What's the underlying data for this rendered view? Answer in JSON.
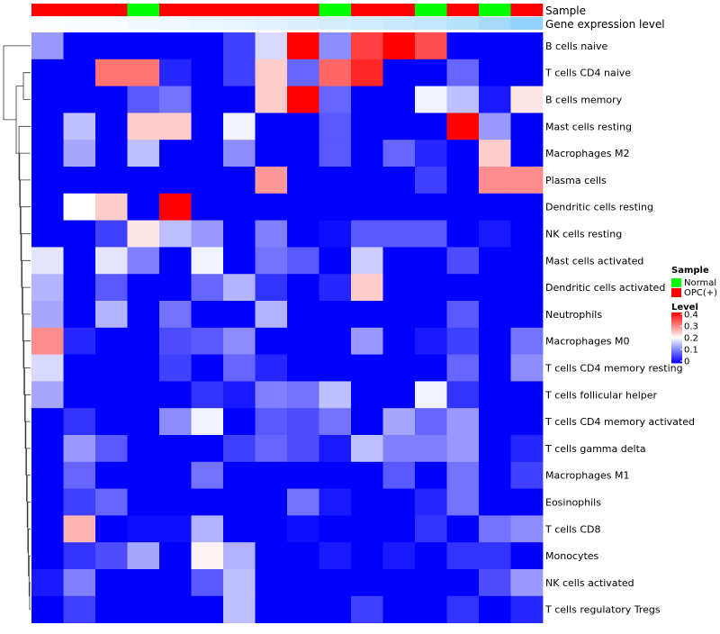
{
  "chart_data": {
    "type": "heatmap",
    "annotations": [
      {
        "label": "Sample",
        "values": [
          "OPC(+)",
          "OPC(+)",
          "OPC(+)",
          "Normal",
          "OPC(+)",
          "OPC(+)",
          "OPC(+)",
          "OPC(+)",
          "OPC(+)",
          "Normal",
          "OPC(+)",
          "OPC(+)",
          "Normal",
          "OPC(+)",
          "Normal",
          "OPC(+)"
        ]
      },
      {
        "label": "Gene expression level",
        "values": [
          0.02,
          0.04,
          0.06,
          0.1,
          0.14,
          0.18,
          0.22,
          0.26,
          0.3,
          0.35,
          0.4,
          0.45,
          0.5,
          0.6,
          0.75,
          0.9
        ]
      }
    ],
    "rows": [
      "B cells naive",
      "T cells CD4 naive",
      "B cells memory",
      "Mast cells resting",
      "Macrophages M2",
      "Plasma cells",
      "Dendritic cells resting",
      "NK cells resting",
      "Mast cells activated",
      "Dendritic cells activated",
      "Neutrophils",
      "Macrophages M0",
      "T cells CD4 memory resting",
      "T cells follicular helper",
      "T cells CD4 memory activated",
      "T cells gamma delta",
      "Macrophages M1",
      "Eosinophils",
      "T cells CD8",
      "Monocytes",
      "NK cells activated",
      "T cells regulatory  Tregs"
    ],
    "values": [
      [
        0.12,
        0,
        0,
        0,
        0,
        0,
        0.05,
        0.17,
        0.4,
        0.11,
        0.35,
        0.4,
        0.34,
        0,
        0,
        0
      ],
      [
        0,
        0,
        0.31,
        0.31,
        0.03,
        0,
        0.05,
        0.24,
        0.08,
        0.32,
        0.37,
        0,
        0,
        0.08,
        0,
        0
      ],
      [
        0,
        0,
        0,
        0.07,
        0.09,
        0,
        0,
        0.24,
        0.4,
        0.08,
        0,
        0,
        0.19,
        0.15,
        0.02,
        0.22
      ],
      [
        0,
        0.15,
        0,
        0.24,
        0.24,
        0,
        0.19,
        0,
        0,
        0.07,
        0,
        0,
        0,
        0.4,
        0.12,
        0
      ],
      [
        0,
        0.13,
        0,
        0.15,
        0,
        0,
        0.11,
        0,
        0,
        0.07,
        0,
        0.08,
        0.03,
        0,
        0.24,
        0
      ],
      [
        0,
        0,
        0,
        0,
        0,
        0,
        0,
        0.28,
        0,
        0,
        0,
        0,
        0.05,
        0,
        0.29,
        0.29
      ],
      [
        0,
        0.2,
        0.24,
        0,
        0.4,
        0,
        0,
        0,
        0,
        0,
        0,
        0,
        0,
        0,
        0,
        0
      ],
      [
        0,
        0,
        0.05,
        0.22,
        0.15,
        0.12,
        0,
        0.1,
        0,
        0.01,
        0.07,
        0.07,
        0.07,
        0,
        0.02,
        0
      ],
      [
        0.18,
        0,
        0.18,
        0.1,
        0,
        0.19,
        0,
        0.09,
        0.07,
        0,
        0.16,
        0,
        0,
        0.06,
        0,
        0
      ],
      [
        0.14,
        0,
        0.07,
        0,
        0,
        0.08,
        0.14,
        0.04,
        0,
        0.03,
        0.24,
        0,
        0,
        0,
        0,
        0
      ],
      [
        0.13,
        0,
        0.14,
        0,
        0.09,
        0,
        0,
        0.14,
        0,
        0,
        0,
        0,
        0,
        0.07,
        0,
        0
      ],
      [
        0.29,
        0.03,
        0,
        0,
        0.06,
        0.07,
        0.11,
        0,
        0,
        0,
        0.12,
        0,
        0.02,
        0.05,
        0,
        0.09
      ],
      [
        0.17,
        0,
        0,
        0,
        0.05,
        0,
        0.08,
        0.03,
        0,
        0,
        0,
        0,
        0,
        0.08,
        0,
        0.11
      ],
      [
        0.13,
        0,
        0,
        0,
        0,
        0.04,
        0.02,
        0.1,
        0.09,
        0.15,
        0,
        0,
        0.19,
        0.04,
        0,
        0
      ],
      [
        0,
        0.04,
        0,
        0,
        0.11,
        0.19,
        0,
        0.07,
        0.06,
        0.09,
        0,
        0.13,
        0.08,
        0.12,
        0,
        0
      ],
      [
        0,
        0.12,
        0.07,
        0,
        0,
        0,
        0.05,
        0.08,
        0.06,
        0.02,
        0.15,
        0.1,
        0.1,
        0.12,
        0,
        0.03
      ],
      [
        0,
        0.08,
        0,
        0,
        0,
        0.09,
        0,
        0,
        0,
        0,
        0,
        0.07,
        0,
        0.09,
        0,
        0.05
      ],
      [
        0,
        0.05,
        0.08,
        0,
        0,
        0,
        0,
        0,
        0.09,
        0.02,
        0,
        0,
        0.03,
        0.09,
        0,
        0
      ],
      [
        0,
        0.26,
        0,
        0.01,
        0.01,
        0.14,
        0,
        0,
        0.01,
        0,
        0,
        0,
        0.04,
        0,
        0.09,
        0.11
      ],
      [
        0,
        0.04,
        0.06,
        0.13,
        0,
        0.21,
        0.14,
        0,
        0,
        0.02,
        0,
        0.02,
        0,
        0.04,
        0.04,
        0
      ],
      [
        0.02,
        0.1,
        0,
        0,
        0,
        0.07,
        0.15,
        0,
        0,
        0,
        0,
        0,
        0,
        0,
        0.06,
        0.12
      ],
      [
        0,
        0.05,
        0,
        0,
        0,
        0,
        0.15,
        0,
        0,
        0,
        0.05,
        0,
        0,
        0.04,
        0,
        0.03
      ]
    ],
    "colorscale": {
      "low": "#0000FF",
      "mid": "#FFFFFF",
      "high": "#FF0000",
      "min": 0,
      "mid_value": 0.2,
      "max": 0.4
    },
    "legend": {
      "sample_title": "Sample",
      "sample_items": [
        {
          "label": "Normal",
          "color": "#00FF00"
        },
        {
          "label": "OPC(+)",
          "color": "#FF0000"
        }
      ],
      "level_title": "Level",
      "level_ticks": [
        "0.4",
        "0.3",
        "0.2",
        "0.1",
        "0"
      ],
      "placement": "right"
    },
    "dendrogram": "left, rows"
  }
}
